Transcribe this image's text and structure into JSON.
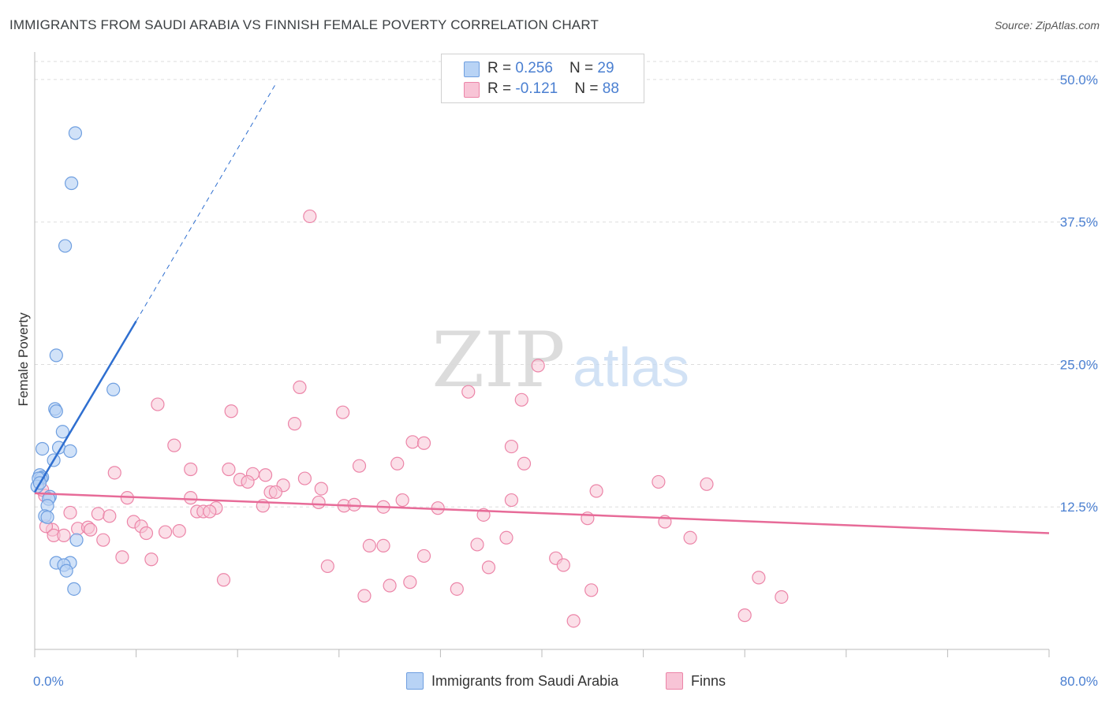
{
  "title": "IMMIGRANTS FROM SAUDI ARABIA VS FINNISH FEMALE POVERTY CORRELATION CHART",
  "source": "Source: ZipAtlas.com",
  "watermark": {
    "zip": "ZIP",
    "atlas": "atlas"
  },
  "legend": {
    "rows": [
      {
        "r_label": "R = ",
        "r_value": "0.256",
        "n_label": "N = ",
        "n_value": "29"
      },
      {
        "r_label": "R = ",
        "r_value": "-0.121",
        "n_label": "N = ",
        "n_value": "88"
      }
    ]
  },
  "bottom_legend": {
    "series1": "Immigrants from Saudi Arabia",
    "series2": "Finns"
  },
  "colors": {
    "blue_fill": "#b8d3f5",
    "blue_stroke": "#6f9fe0",
    "blue_line": "#2f6fd0",
    "pink_fill": "#f8c4d6",
    "pink_stroke": "#ec85a8",
    "pink_line": "#e76b98",
    "accent_text": "#4a7fd1",
    "grid": "#dddddd"
  },
  "chart_data": {
    "type": "scatter",
    "title": "IMMIGRANTS FROM SAUDI ARABIA VS FINNISH FEMALE POVERTY CORRELATION CHART",
    "xlabel": "",
    "ylabel": "Female Poverty",
    "xlim": [
      0,
      80
    ],
    "ylim": [
      0,
      52
    ],
    "x_tick_labels": [
      "0.0%",
      "80.0%"
    ],
    "y_ticks": [
      12.5,
      25.0,
      37.5,
      50.0
    ],
    "y_tick_labels": [
      "12.5%",
      "25.0%",
      "37.5%",
      "50.0%"
    ],
    "grid": true,
    "legend_position": "top-center",
    "series": [
      {
        "name": "Immigrants from Saudi Arabia",
        "color": "#b8d3f5",
        "r": 0.256,
        "n": 29,
        "trend": {
          "x": [
            0.0,
            8.0
          ],
          "y": [
            13.8,
            28.8
          ],
          "extended_x": [
            8.0,
            19.0
          ],
          "extended_y": [
            28.8,
            49.6
          ]
        },
        "points": [
          [
            3.2,
            45.3
          ],
          [
            2.9,
            40.9
          ],
          [
            2.4,
            35.4
          ],
          [
            1.7,
            25.8
          ],
          [
            6.2,
            22.8
          ],
          [
            1.6,
            21.1
          ],
          [
            1.7,
            20.9
          ],
          [
            2.2,
            19.1
          ],
          [
            0.6,
            17.6
          ],
          [
            1.9,
            17.7
          ],
          [
            2.8,
            17.4
          ],
          [
            1.5,
            16.6
          ],
          [
            0.4,
            15.3
          ],
          [
            0.6,
            15.1
          ],
          [
            0.5,
            15.0
          ],
          [
            0.3,
            15.0
          ],
          [
            0.2,
            14.3
          ],
          [
            0.4,
            14.6
          ],
          [
            1.2,
            13.4
          ],
          [
            1.1,
            13.2
          ],
          [
            1.0,
            12.6
          ],
          [
            0.8,
            11.7
          ],
          [
            1.0,
            11.6
          ],
          [
            3.3,
            9.6
          ],
          [
            1.7,
            7.6
          ],
          [
            2.8,
            7.6
          ],
          [
            2.3,
            7.4
          ],
          [
            2.5,
            6.9
          ],
          [
            3.1,
            5.3
          ]
        ]
      },
      {
        "name": "Finns",
        "color": "#f8c4d6",
        "r": -0.121,
        "n": 88,
        "trend": {
          "x": [
            0.0,
            80.0
          ],
          "y": [
            13.7,
            10.2
          ]
        },
        "points": [
          [
            21.7,
            38.0
          ],
          [
            39.7,
            24.9
          ],
          [
            20.9,
            23.0
          ],
          [
            34.2,
            22.6
          ],
          [
            38.4,
            21.9
          ],
          [
            9.7,
            21.5
          ],
          [
            15.5,
            20.9
          ],
          [
            24.3,
            20.8
          ],
          [
            20.5,
            19.8
          ],
          [
            29.8,
            18.2
          ],
          [
            30.7,
            18.1
          ],
          [
            11.0,
            17.9
          ],
          [
            37.6,
            17.8
          ],
          [
            38.6,
            16.3
          ],
          [
            25.6,
            16.1
          ],
          [
            28.6,
            16.3
          ],
          [
            12.3,
            15.8
          ],
          [
            15.3,
            15.8
          ],
          [
            6.3,
            15.5
          ],
          [
            17.2,
            15.4
          ],
          [
            18.2,
            15.3
          ],
          [
            21.3,
            15.0
          ],
          [
            16.2,
            14.9
          ],
          [
            16.8,
            14.7
          ],
          [
            19.6,
            14.4
          ],
          [
            22.6,
            14.1
          ],
          [
            53.0,
            14.5
          ],
          [
            49.2,
            14.7
          ],
          [
            44.3,
            13.9
          ],
          [
            18.6,
            13.8
          ],
          [
            19.0,
            13.8
          ],
          [
            7.3,
            13.3
          ],
          [
            12.3,
            13.3
          ],
          [
            29.0,
            13.1
          ],
          [
            37.6,
            13.1
          ],
          [
            22.4,
            12.9
          ],
          [
            24.4,
            12.6
          ],
          [
            25.2,
            12.7
          ],
          [
            27.5,
            12.5
          ],
          [
            31.8,
            12.4
          ],
          [
            18.0,
            12.6
          ],
          [
            14.3,
            12.4
          ],
          [
            12.8,
            12.1
          ],
          [
            13.3,
            12.1
          ],
          [
            13.8,
            12.1
          ],
          [
            2.8,
            12.0
          ],
          [
            5.0,
            11.9
          ],
          [
            5.9,
            11.7
          ],
          [
            35.4,
            11.8
          ],
          [
            43.6,
            11.5
          ],
          [
            49.7,
            11.2
          ],
          [
            7.8,
            11.2
          ],
          [
            8.4,
            10.8
          ],
          [
            3.4,
            10.6
          ],
          [
            4.2,
            10.7
          ],
          [
            4.4,
            10.5
          ],
          [
            1.4,
            10.5
          ],
          [
            8.8,
            10.2
          ],
          [
            10.3,
            10.3
          ],
          [
            11.4,
            10.4
          ],
          [
            0.9,
            10.8
          ],
          [
            1.5,
            10.0
          ],
          [
            2.3,
            10.0
          ],
          [
            5.4,
            9.6
          ],
          [
            37.2,
            9.8
          ],
          [
            51.7,
            9.8
          ],
          [
            26.4,
            9.1
          ],
          [
            27.5,
            9.1
          ],
          [
            34.9,
            9.2
          ],
          [
            30.7,
            8.2
          ],
          [
            6.9,
            8.1
          ],
          [
            9.2,
            7.9
          ],
          [
            41.1,
            8.0
          ],
          [
            41.7,
            7.4
          ],
          [
            23.1,
            7.3
          ],
          [
            35.8,
            7.2
          ],
          [
            14.9,
            6.1
          ],
          [
            57.1,
            6.3
          ],
          [
            29.6,
            5.9
          ],
          [
            28.0,
            5.6
          ],
          [
            33.3,
            5.3
          ],
          [
            43.9,
            5.2
          ],
          [
            26.0,
            4.7
          ],
          [
            58.9,
            4.6
          ],
          [
            42.5,
            2.5
          ],
          [
            56.0,
            3.0
          ],
          [
            0.8,
            13.5
          ],
          [
            0.6,
            14.0
          ]
        ]
      }
    ]
  }
}
